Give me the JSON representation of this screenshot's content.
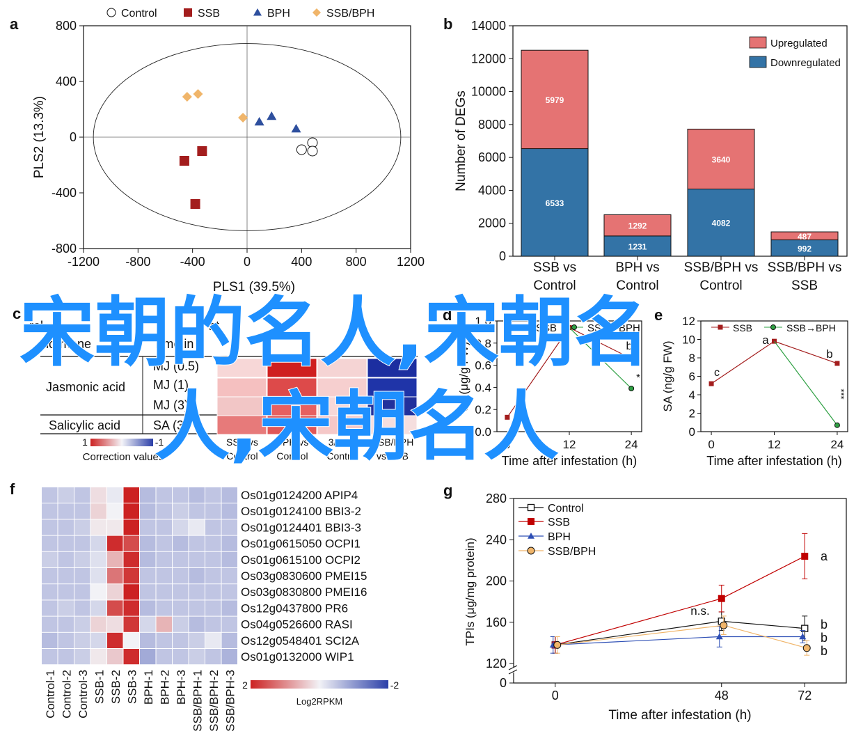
{
  "watermark": {
    "line1": "宋朝的名人,宋朝名",
    "line2": "人,宋朝名人",
    "color": "#1e90ff"
  },
  "colors": {
    "ssb": "#a31d1d",
    "bph": "#2e4f9e",
    "ssbbph": "#f0b56a",
    "up": "#e57373",
    "down": "#3373a6",
    "control_series": "#111111"
  },
  "chart_data": [
    {
      "panel": "a",
      "type": "scatter",
      "xlabel": "PLS1 (39.5%)",
      "ylabel": "PLS2 (13.3%)",
      "xlim": [
        -1200,
        1200
      ],
      "ylim": [
        -800,
        800
      ],
      "xticks": [
        -1200,
        -800,
        -400,
        0,
        400,
        800,
        1200
      ],
      "yticks": [
        -800,
        -400,
        0,
        400,
        800
      ],
      "legend": [
        "Control",
        "SSB",
        "BPH",
        "SSB/BPH"
      ],
      "legend_position": "top",
      "series": [
        {
          "name": "Control",
          "marker": "circle",
          "points": [
            [
              480,
              -40
            ],
            [
              400,
              -90
            ],
            [
              480,
              -100
            ]
          ]
        },
        {
          "name": "SSB",
          "marker": "square",
          "points": [
            [
              -330,
              -100
            ],
            [
              -460,
              -170
            ],
            [
              -380,
              -480
            ]
          ]
        },
        {
          "name": "BPH",
          "marker": "triangle",
          "points": [
            [
              90,
              110
            ],
            [
              180,
              150
            ],
            [
              360,
              60
            ]
          ]
        },
        {
          "name": "SSB/BPH",
          "marker": "diamond",
          "points": [
            [
              -440,
              290
            ],
            [
              -360,
              310
            ],
            [
              -30,
              140
            ]
          ]
        }
      ]
    },
    {
      "panel": "b",
      "type": "bar",
      "ylabel": "Number of DEGs",
      "ylim": [
        0,
        14000
      ],
      "yticks": [
        0,
        2000,
        4000,
        6000,
        8000,
        10000,
        12000,
        14000
      ],
      "categories": [
        [
          "SSB vs",
          "Control"
        ],
        [
          "BPH vs",
          "Control"
        ],
        [
          "SSB/BPH vs",
          "Control"
        ],
        [
          "SSB/BPH vs",
          "SSB"
        ]
      ],
      "series": [
        {
          "name": "Downregulated",
          "values": [
            6533,
            1231,
            4082,
            992
          ]
        },
        {
          "name": "Upregulated",
          "values": [
            5979,
            1292,
            3640,
            487
          ]
        }
      ],
      "legend": [
        "Upregulated",
        "Downregulated"
      ],
      "legend_position": "top-right"
    },
    {
      "panel": "c",
      "type": "table",
      "visible_headers": [
        "rol",
        "nt",
        "hormone",
        "Time in h"
      ],
      "rows": [
        {
          "group": "Jasmonic acid",
          "items": [
            "MJ (0.5)",
            "MJ (1)",
            "MJ (3)"
          ]
        },
        {
          "group": "Salicylic acid",
          "items": [
            "SA (3)"
          ]
        }
      ],
      "columns": [
        "SSB vs Control",
        "BPH vs Control",
        "SSB/BPH vs Control",
        "SSB/BPH vs SSB"
      ],
      "colorbar": {
        "label": "Correction values",
        "min_label": "1",
        "max_label": "-1"
      }
    },
    {
      "panel": "d",
      "type": "line",
      "xlabel": "Time after infestation (h)",
      "ylabel": "JA (μg/g FW)",
      "xticks": [
        0,
        12,
        24
      ],
      "ylim": [
        0,
        1.0
      ],
      "yticks": [
        0,
        0.2,
        0.4,
        0.6,
        0.8,
        1.0
      ],
      "series": [
        {
          "name": "SSB",
          "x": [
            0,
            12,
            24
          ],
          "values": [
            0.13,
            0.94,
            0.66
          ]
        },
        {
          "name": "SSB→BPH",
          "x": [
            12,
            24
          ],
          "values": [
            0.94,
            0.39
          ]
        }
      ],
      "annotations": [
        "a",
        "b",
        "*"
      ]
    },
    {
      "panel": "e",
      "type": "line",
      "xlabel": "Time after infestation (h)",
      "ylabel": "SA (ng/g FW)",
      "xticks": [
        0,
        12,
        24
      ],
      "ylim": [
        0,
        12
      ],
      "yticks": [
        0,
        2,
        4,
        6,
        8,
        10,
        12
      ],
      "series": [
        {
          "name": "SSB",
          "x": [
            0,
            12,
            24
          ],
          "values": [
            5.2,
            9.8,
            7.4
          ]
        },
        {
          "name": "SSB→BPH",
          "x": [
            12,
            24
          ],
          "values": [
            9.8,
            0.7
          ]
        }
      ],
      "legend": [
        "SSB",
        "SSB→BPH"
      ],
      "annotations": [
        "c",
        "a",
        "b",
        "***"
      ]
    },
    {
      "panel": "f",
      "type": "heatmap",
      "columns": [
        "Control-1",
        "Control-2",
        "Control-3",
        "SSB-1",
        "SSB-2",
        "SSB-3",
        "BPH-1",
        "BPH-2",
        "BPH-3",
        "SSB/BPH-1",
        "SSB/BPH-2",
        "SSB/BPH-3"
      ],
      "rows": [
        "Os01g0124200 APIP4",
        "Os01g0124100 BBI3-2",
        "Os01g0124401 BBI3-3",
        "Os01g0615050 OCPI1",
        "Os01g0615100 OCPI2",
        "Os03g0830600 PMEI15",
        "Os03g0830800 PMEI16",
        "Os12g0437800 PR6",
        "Os04g0526600 RASI",
        "Os12g0548401 SCI2A",
        "Os01g0132000 WIP1"
      ],
      "values": [
        [
          -0.5,
          -0.4,
          -0.5,
          0.2,
          -0.1,
          2.0,
          -0.6,
          -0.5,
          -0.5,
          -0.6,
          -0.5,
          -0.6
        ],
        [
          -0.5,
          -0.5,
          -0.5,
          0.3,
          0.0,
          2.0,
          -0.6,
          -0.5,
          -0.4,
          -0.5,
          -0.5,
          -0.6
        ],
        [
          -0.5,
          -0.5,
          -0.4,
          0.1,
          0.1,
          2.0,
          -0.5,
          -0.5,
          -0.3,
          -0.1,
          -0.5,
          -0.5
        ],
        [
          -0.5,
          -0.5,
          -0.5,
          -0.3,
          1.9,
          1.6,
          -0.6,
          -0.5,
          -0.6,
          -0.5,
          -0.5,
          -0.6
        ],
        [
          -0.4,
          -0.5,
          -0.4,
          -0.2,
          0.6,
          1.9,
          -0.6,
          -0.5,
          -0.5,
          -0.5,
          -0.5,
          -0.6
        ],
        [
          -0.5,
          -0.5,
          -0.5,
          -0.2,
          1.2,
          1.8,
          -0.5,
          -0.5,
          -0.5,
          -0.6,
          -0.5,
          -0.5
        ],
        [
          -0.5,
          -0.5,
          -0.5,
          0.0,
          0.3,
          2.0,
          -0.5,
          -0.5,
          -0.5,
          -0.5,
          -0.5,
          -0.5
        ],
        [
          -0.5,
          -0.4,
          -0.5,
          -0.3,
          1.6,
          1.9,
          -0.6,
          -0.5,
          -0.5,
          -0.5,
          -0.5,
          -0.6
        ],
        [
          -0.5,
          -0.5,
          -0.4,
          0.3,
          0.2,
          1.8,
          -0.3,
          0.6,
          -0.4,
          -0.6,
          -0.5,
          -0.5
        ],
        [
          -0.6,
          -0.5,
          -0.4,
          -0.3,
          1.9,
          0.0,
          -0.6,
          -0.5,
          -0.5,
          -0.4,
          -0.1,
          -0.6
        ],
        [
          -0.5,
          -0.5,
          -0.4,
          0.1,
          0.4,
          1.9,
          -0.8,
          -0.5,
          -0.5,
          -0.4,
          -0.5,
          -0.7
        ]
      ],
      "colorbar": {
        "label": "Log2RPKM",
        "min_label": "2",
        "max_label": "-2",
        "range": [
          2,
          -2
        ]
      }
    },
    {
      "panel": "g",
      "type": "line",
      "xlabel": "Time after infestation (h)",
      "ylabel": "TPIs (μg/mg protein)",
      "x": [
        0,
        48,
        72
      ],
      "ylim": [
        120,
        280
      ],
      "yticks": [
        0,
        120,
        160,
        200,
        240,
        280
      ],
      "axis_break": true,
      "series": [
        {
          "name": "Control",
          "marker": "open-square",
          "values": [
            138,
            161,
            154
          ],
          "errors": [
            8,
            9,
            12
          ]
        },
        {
          "name": "SSB",
          "marker": "square",
          "values": [
            138,
            183,
            224
          ],
          "errors": [
            8,
            13,
            22
          ]
        },
        {
          "name": "BPH",
          "marker": "triangle",
          "values": [
            138,
            146,
            146
          ],
          "errors": [
            8,
            10,
            6
          ]
        },
        {
          "name": "SSB/BPH",
          "marker": "circle",
          "values": [
            138,
            157,
            135
          ],
          "errors": [
            8,
            9,
            7
          ]
        }
      ],
      "legend": [
        "Control",
        "SSB",
        "BPH",
        "SSB/BPH"
      ],
      "legend_position": "top-left",
      "annotations": [
        "n.s.",
        "a",
        "b",
        "b",
        "b"
      ]
    }
  ]
}
